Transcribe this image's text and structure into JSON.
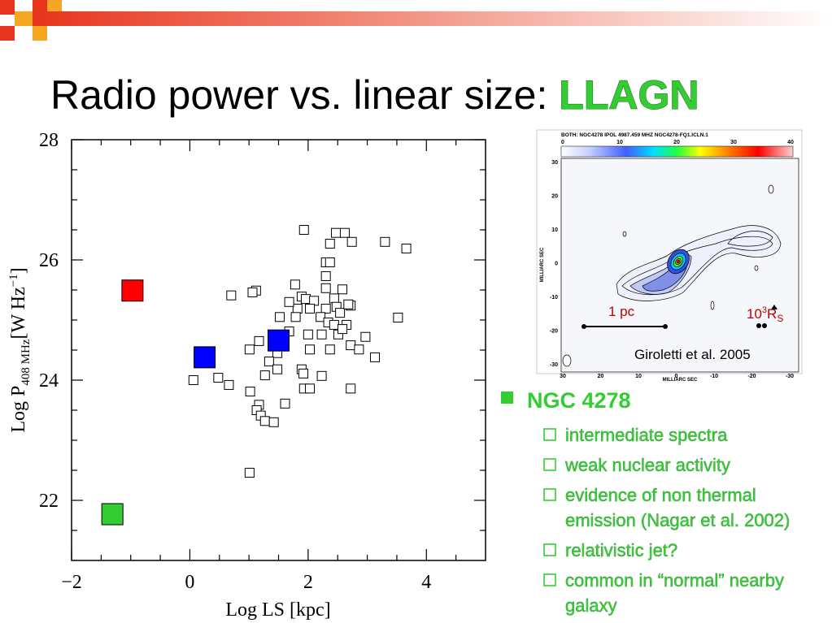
{
  "title": "Radio power vs. linear size: ",
  "title_highlight": "LLAGN",
  "chart_data": {
    "type": "scatter",
    "xlabel": "Log LS [kpc]",
    "ylabel": {
      "main": "Log P",
      "sub": "408 MHz",
      "unit": "[W Hz",
      "sup": "−1",
      "close": "]"
    },
    "xlim": [
      -2,
      5
    ],
    "ylim": [
      21,
      28
    ],
    "xticks": [
      {
        "value": -2,
        "label": "−2"
      },
      0,
      2,
      4
    ],
    "yticks": [
      22,
      24,
      26,
      28
    ],
    "xminorticks": [
      -1.5,
      -1,
      -0.5,
      0.5,
      1,
      1.5,
      2.5,
      3,
      3.5,
      4.5
    ],
    "yminorticks": [
      21.5,
      22.5,
      23,
      23.5,
      24.5,
      25,
      25.5,
      26.5,
      27,
      27.5
    ],
    "series": [
      {
        "marker": "open",
        "color": "#000000",
        "x": [
          1.93,
          2.47,
          2.62,
          2.37,
          2.74,
          3.3,
          3.66,
          2.3,
          2.37,
          2.3,
          1.78,
          2.3,
          2.58,
          1.89,
          1.96,
          2.44,
          2.1,
          2.72,
          1.82,
          2.03,
          2.48,
          2.3,
          2.21,
          2.54,
          2.68,
          3.52,
          1.52,
          1.79,
          2.34,
          2.44,
          2.65,
          1.68,
          2.0,
          2.23,
          2.51,
          2.97,
          2.58,
          2.03,
          2.37,
          2.72,
          2.86,
          3.13,
          1.48,
          1.17,
          1.01,
          1.34,
          1.48,
          1.89,
          1.92,
          2.23,
          1.02,
          1.27,
          0.48,
          0.66,
          0.06,
          0.7,
          1.12,
          1.06,
          1.17,
          1.13,
          1.2,
          1.27,
          1.42,
          1.61,
          1.93,
          2.03,
          2.72,
          1.01,
          1.68
        ],
        "values": [
          26.5,
          26.45,
          26.45,
          26.27,
          26.3,
          26.3,
          26.19,
          25.96,
          25.96,
          25.73,
          25.59,
          25.53,
          25.51,
          25.39,
          25.35,
          25.36,
          25.32,
          25.24,
          25.19,
          25.19,
          25.22,
          25.19,
          25.05,
          25.12,
          25.26,
          25.04,
          25.05,
          25.05,
          24.96,
          24.92,
          24.92,
          24.81,
          24.76,
          24.76,
          24.76,
          24.72,
          24.85,
          24.51,
          24.51,
          24.58,
          24.51,
          24.38,
          24.45,
          24.65,
          24.51,
          24.31,
          24.18,
          24.18,
          24.11,
          24.07,
          23.81,
          24.08,
          24.04,
          23.92,
          24.0,
          25.41,
          25.49,
          25.46,
          23.59,
          23.5,
          23.41,
          23.32,
          23.3,
          23.61,
          23.86,
          23.86,
          23.86,
          22.46,
          25.3
        ]
      },
      {
        "marker": "filled",
        "color": "#ff0000",
        "x": [
          -0.97
        ],
        "values": [
          25.49
        ]
      },
      {
        "marker": "filled",
        "color": "#0000ff",
        "x": [
          0.25,
          1.5
        ],
        "values": [
          24.38,
          24.66
        ]
      },
      {
        "marker": "filled",
        "color": "#33cc33",
        "x": [
          -1.31
        ],
        "values": [
          21.77
        ]
      }
    ]
  },
  "figure": {
    "header": "BOTH: NGC4278  IPOL  4987.459 MHZ  NGC4278-FQ1.ICLN.1",
    "colorbar_ticks": [
      "0",
      "10",
      "20",
      "30",
      "40"
    ],
    "ylabel": "MILLIARC SEC",
    "xlabel": "MILLIARC SEC",
    "yticks": [
      "30",
      "20",
      "10",
      "0",
      "-10",
      "-20",
      "-30"
    ],
    "xticks": [
      "30",
      "20",
      "10",
      "0",
      "-10",
      "-20",
      "-30"
    ],
    "scale_pc": "1 pc",
    "scale_rs": {
      "base": "10",
      "sup": "3",
      "main": "R",
      "sub": "S"
    },
    "credit": "Giroletti et al. 2005"
  },
  "bullets": {
    "main": "NGC 4278",
    "items": [
      "intermediate spectra",
      "weak nuclear activity",
      [
        "evidence of non thermal",
        "emission (Nagar et al. 2002)"
      ],
      "relativistic jet?",
      [
        "common in “normal” nearby",
        "galaxy"
      ]
    ]
  }
}
